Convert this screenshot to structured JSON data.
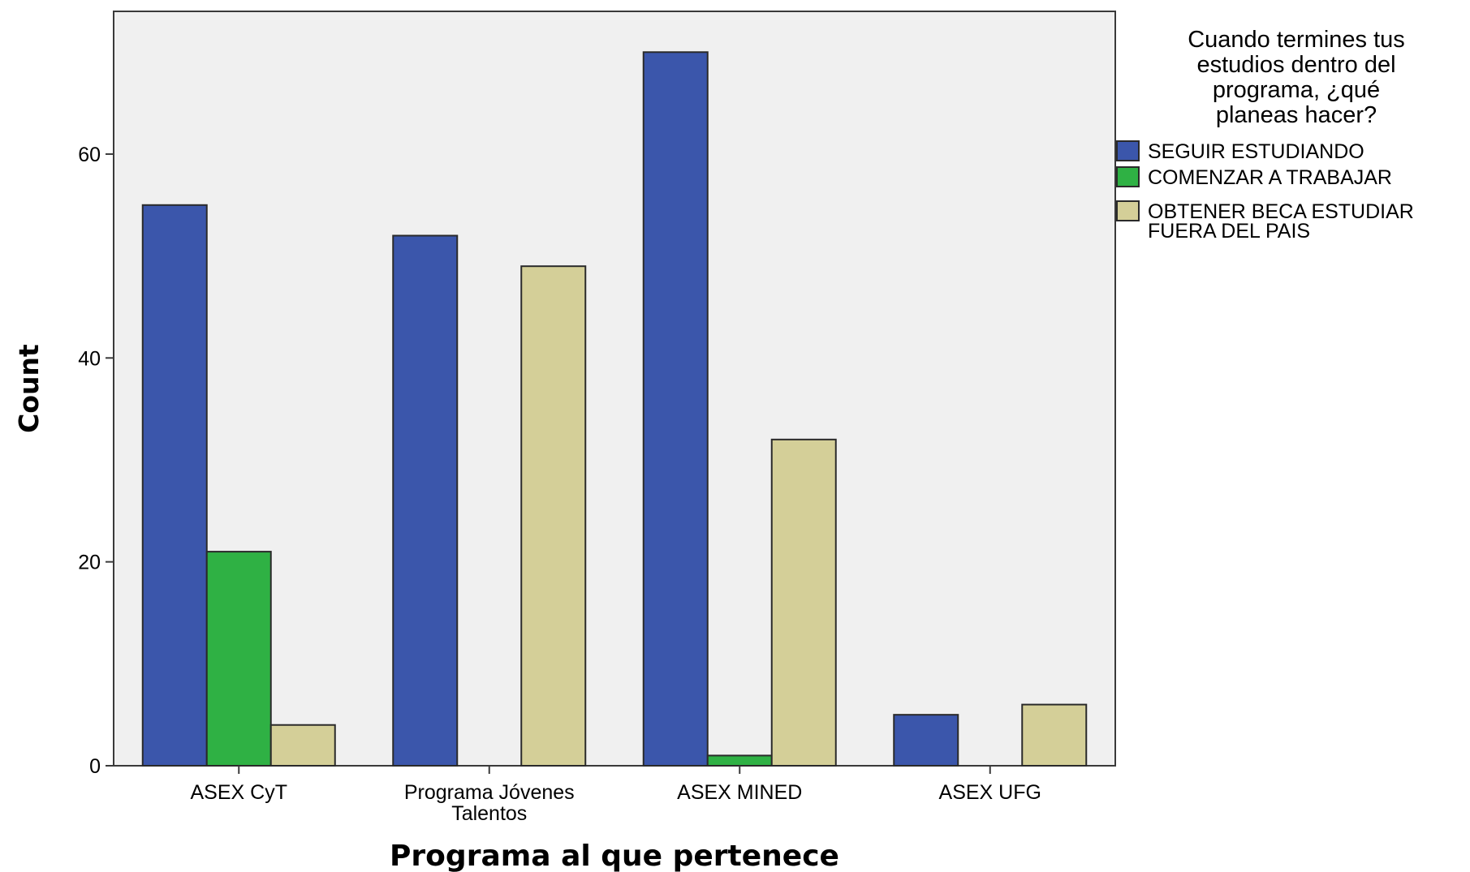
{
  "chart_data": {
    "type": "bar",
    "xlabel": "Programa al que pertenece",
    "ylabel": "Count",
    "ylim": [
      0,
      74
    ],
    "yticks": [
      0,
      20,
      40,
      60
    ],
    "grid": false,
    "legend_position": "right",
    "categories": [
      [
        "ASEX CyT"
      ],
      [
        "Programa Jóvenes",
        "Talentos"
      ],
      [
        "ASEX MINED"
      ],
      [
        "ASEX UFG"
      ]
    ],
    "legend_title": [
      "Cuando termines tus",
      "estudios dentro del",
      "programa, ¿qué",
      "planeas hacer?"
    ],
    "series": [
      {
        "name": [
          "SEGUIR ESTUDIANDO"
        ],
        "color": "#3b56ab",
        "values": [
          55,
          52,
          70,
          5
        ]
      },
      {
        "name": [
          "COMENZAR A TRABAJAR"
        ],
        "color": "#2fb144",
        "values": [
          21,
          0,
          1,
          0
        ]
      },
      {
        "name": [
          "OBTENER BECA ESTUDIAR",
          "FUERA DEL PAIS"
        ],
        "color": "#d4cf98",
        "values": [
          4,
          49,
          32,
          6
        ]
      }
    ]
  }
}
